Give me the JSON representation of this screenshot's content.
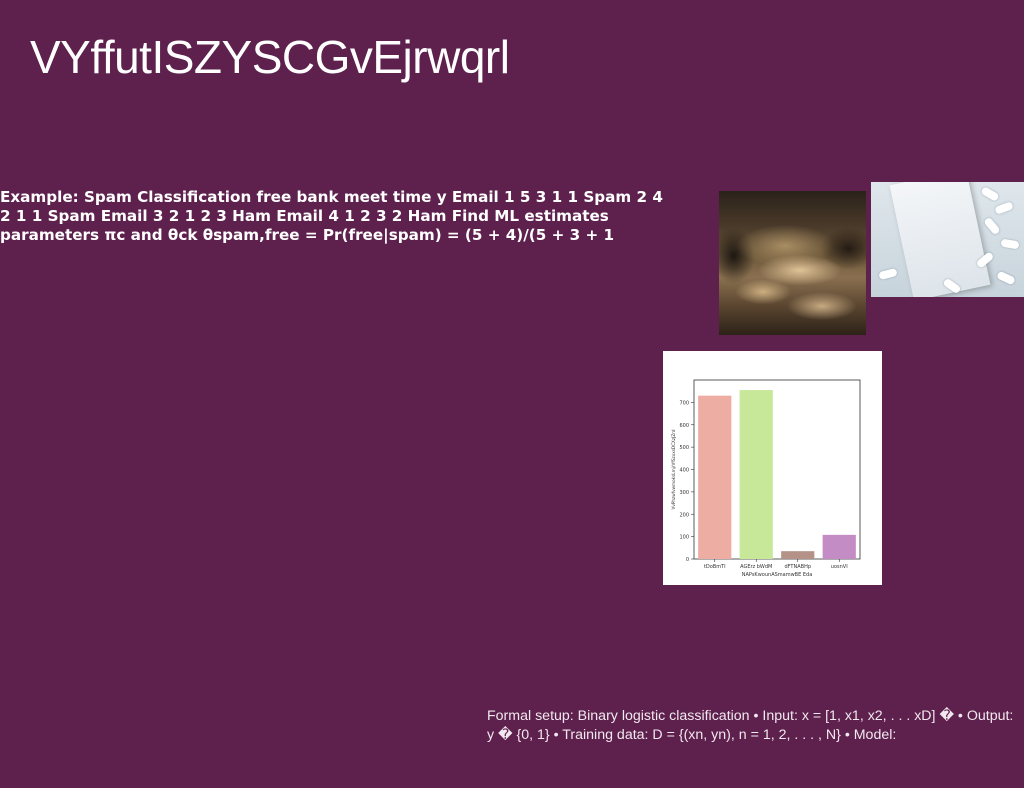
{
  "slide": {
    "title": "VYffutISZYSCGvEjrwqrl",
    "example_text": "Example: Spam Classification free bank meet time y Email 1 5 3 1 1 Spam 2 4 2 1 1 Spam Email 3 2 1 2 3 Ham Email 4 1 2 3 2 Ham Find ML estimates parameters πc and θck θspam,free = Pr(free|spam) = (5 + 4)/(5 + 3 + 1",
    "footnote": "Formal setup: Binary logistic classification • Input: x = [1, x1, x2, . . . xD] � • Output: y � {0, 1} • Training data: D = {(xn, yn), n = 1, 2, . . . , N} • Model:"
  },
  "images": [
    {
      "subject": "waterfall-photo"
    },
    {
      "subject": "pill-box-photo"
    }
  ],
  "chart_data": {
    "type": "bar",
    "categories": [
      "tDoBmTI",
      "AGErz bWdM",
      "dFTNABHp",
      "uosnVI"
    ],
    "values": [
      730,
      755,
      35,
      108
    ],
    "colors": [
      "#eeada2",
      "#c7e899",
      "#b59288",
      "#c38cc5"
    ],
    "xlabel": "NAPsKwounASmamwBE Eda",
    "ylabel": "VvPhzwfvwmoksLmjrVfSzxxsDCXzJZrd",
    "ylim": [
      0,
      800
    ],
    "yticks": [
      0,
      100,
      200,
      300,
      400,
      500,
      600,
      700
    ]
  }
}
